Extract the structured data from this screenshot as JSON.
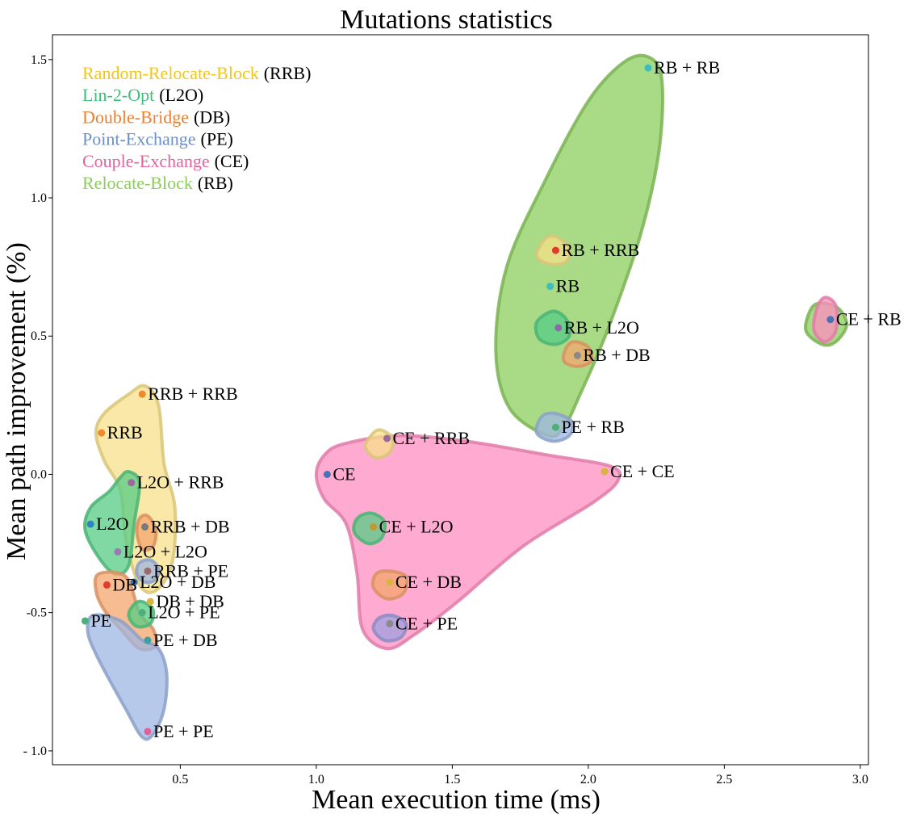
{
  "chart_data": {
    "type": "scatter",
    "title": "Mutations statistics",
    "xlabel": "Mean execution time (ms)",
    "ylabel": "Mean path improvement (%)",
    "xlim": [
      0.03,
      3.03
    ],
    "ylim": [
      -1.05,
      1.59
    ],
    "xticks": [
      {
        "value": 0.5,
        "label": "0.5"
      },
      {
        "value": 1.0,
        "label": "1.0"
      },
      {
        "value": 1.5,
        "label": "1.5"
      },
      {
        "value": 2.0,
        "label": "2.0"
      },
      {
        "value": 2.5,
        "label": "2.5"
      },
      {
        "value": 3.0,
        "label": "3.0"
      }
    ],
    "yticks": [
      {
        "value": 1.5,
        "label": "1.5"
      },
      {
        "value": 1.0,
        "label": "1.0"
      },
      {
        "value": 0.5,
        "label": "0.5"
      },
      {
        "value": 0.0,
        "label": "0.0"
      },
      {
        "value": -0.5,
        "label": "-0.5"
      },
      {
        "value": -1.0,
        "label": "- 1.0"
      }
    ],
    "grid": false,
    "legend_position": "top-left",
    "legend": [
      {
        "name": "Random-Relocate-Block",
        "abbr": "(RRB)",
        "color": "#f2c619"
      },
      {
        "name": "Lin-2-Opt",
        "abbr": "(L2O)",
        "color": "#3cc078"
      },
      {
        "name": "Double-Bridge",
        "abbr": "(DB)",
        "color": "#ee7f2d"
      },
      {
        "name": "Point-Exchange",
        "abbr": "(PE)",
        "color": "#6a8fcb"
      },
      {
        "name": "Couple-Exchange",
        "abbr": "(CE)",
        "color": "#e8629a"
      },
      {
        "name": "Relocate-Block",
        "abbr": "(RB)",
        "color": "#8ccd5e"
      }
    ],
    "points": [
      {
        "label": "RB + RB",
        "x": 2.22,
        "y": 1.47,
        "color": "#3dbdbd"
      },
      {
        "label": "RB + RRB",
        "x": 1.88,
        "y": 0.81,
        "color": "#e03c2e"
      },
      {
        "label": "RB",
        "x": 1.86,
        "y": 0.68,
        "color": "#3dbdbd"
      },
      {
        "label": "CE + RB",
        "x": 2.89,
        "y": 0.56,
        "color": "#4a73b5"
      },
      {
        "label": "RB + L2O",
        "x": 1.89,
        "y": 0.53,
        "color": "#8a6aa8"
      },
      {
        "label": "RB + DB",
        "x": 1.96,
        "y": 0.43,
        "color": "#8a8a8a"
      },
      {
        "label": "RRB + RRB",
        "x": 0.36,
        "y": 0.29,
        "color": "#ee8a2d"
      },
      {
        "label": "PE + RB",
        "x": 1.88,
        "y": 0.17,
        "color": "#4bb07a"
      },
      {
        "label": "RRB",
        "x": 0.21,
        "y": 0.15,
        "color": "#ee8a2d"
      },
      {
        "label": "CE + RRB",
        "x": 1.26,
        "y": 0.13,
        "color": "#9a6a9a"
      },
      {
        "label": "CE",
        "x": 1.04,
        "y": 0.0,
        "color": "#4a73b5"
      },
      {
        "label": "CE + CE",
        "x": 2.06,
        "y": 0.01,
        "color": "#d8b440"
      },
      {
        "label": "L2O + RRB",
        "x": 0.32,
        "y": -0.03,
        "color": "#9a6a9a"
      },
      {
        "label": "L2O",
        "x": 0.17,
        "y": -0.18,
        "color": "#2e86c1"
      },
      {
        "label": "RRB + DB",
        "x": 0.37,
        "y": -0.19,
        "color": "#7a7a7a"
      },
      {
        "label": "CE + L2O",
        "x": 1.21,
        "y": -0.19,
        "color": "#c09a30"
      },
      {
        "label": "L2O + L2O",
        "x": 0.27,
        "y": -0.28,
        "color": "#9a7ab0"
      },
      {
        "label": "RRB + PE",
        "x": 0.38,
        "y": -0.35,
        "color": "#9a6a6a"
      },
      {
        "label": "L2O + DB",
        "x": 0.33,
        "y": -0.39,
        "color": "#3a6fb0"
      },
      {
        "label": "DB",
        "x": 0.23,
        "y": -0.4,
        "color": "#e03c2e"
      },
      {
        "label": "CE + DB",
        "x": 1.27,
        "y": -0.39,
        "color": "#d8b440"
      },
      {
        "label": "DB + DB",
        "x": 0.39,
        "y": -0.46,
        "color": "#d8b440"
      },
      {
        "label": "L2O + PE",
        "x": 0.36,
        "y": -0.5,
        "color": "#4bb07a"
      },
      {
        "label": "PE",
        "x": 0.15,
        "y": -0.53,
        "color": "#4bb07a"
      },
      {
        "label": "CE + PE",
        "x": 1.27,
        "y": -0.54,
        "color": "#8a8a8a"
      },
      {
        "label": "PE + DB",
        "x": 0.38,
        "y": -0.6,
        "color": "#3aa0a0"
      },
      {
        "label": "PE + PE",
        "x": 0.38,
        "y": -0.93,
        "color": "#e0609a"
      }
    ],
    "regions": [
      {
        "color": "#8ccd5e",
        "points": [
          [
            1.85,
            0.14
          ],
          [
            1.71,
            0.24
          ],
          [
            1.66,
            0.45
          ],
          [
            1.7,
            0.75
          ],
          [
            1.84,
            1.06
          ],
          [
            2.0,
            1.35
          ],
          [
            2.13,
            1.49
          ],
          [
            2.22,
            1.51
          ],
          [
            2.27,
            1.43
          ],
          [
            2.26,
            1.17
          ],
          [
            2.19,
            0.86
          ],
          [
            2.07,
            0.52
          ],
          [
            1.97,
            0.29
          ],
          [
            1.91,
            0.17
          ]
        ]
      },
      {
        "color": "#f7e08a",
        "points": [
          [
            0.31,
            0.29
          ],
          [
            0.37,
            0.32
          ],
          [
            0.42,
            0.25
          ],
          [
            0.44,
            0.04
          ],
          [
            0.48,
            -0.12
          ],
          [
            0.47,
            -0.32
          ],
          [
            0.41,
            -0.42
          ],
          [
            0.35,
            -0.4
          ],
          [
            0.3,
            -0.24
          ],
          [
            0.28,
            -0.06
          ],
          [
            0.22,
            0.05
          ],
          [
            0.19,
            0.15
          ],
          [
            0.22,
            0.22
          ]
        ]
      },
      {
        "color": "#ff8ec0",
        "points": [
          [
            1.1,
            0.11
          ],
          [
            1.3,
            0.14
          ],
          [
            1.55,
            0.12
          ],
          [
            1.85,
            0.07
          ],
          [
            2.08,
            0.03
          ],
          [
            2.11,
            -0.02
          ],
          [
            2.02,
            -0.1
          ],
          [
            1.76,
            -0.26
          ],
          [
            1.52,
            -0.46
          ],
          [
            1.36,
            -0.58
          ],
          [
            1.26,
            -0.63
          ],
          [
            1.17,
            -0.56
          ],
          [
            1.15,
            -0.36
          ],
          [
            1.11,
            -0.18
          ],
          [
            1.03,
            -0.09
          ],
          [
            1.0,
            0.0
          ],
          [
            1.03,
            0.07
          ]
        ]
      },
      {
        "color": "#56cc84",
        "points": [
          [
            0.31,
            0.01
          ],
          [
            0.35,
            -0.03
          ],
          [
            0.33,
            -0.18
          ],
          [
            0.31,
            -0.33
          ],
          [
            0.26,
            -0.36
          ],
          [
            0.2,
            -0.3
          ],
          [
            0.15,
            -0.2
          ],
          [
            0.17,
            -0.12
          ],
          [
            0.24,
            -0.06
          ],
          [
            0.28,
            -0.01
          ]
        ]
      },
      {
        "color": "#f5a66e",
        "points": [
          [
            0.2,
            -0.36
          ],
          [
            0.3,
            -0.37
          ],
          [
            0.35,
            -0.5
          ],
          [
            0.4,
            -0.56
          ],
          [
            0.41,
            -0.62
          ],
          [
            0.35,
            -0.63
          ],
          [
            0.28,
            -0.56
          ],
          [
            0.22,
            -0.49
          ],
          [
            0.19,
            -0.42
          ]
        ]
      },
      {
        "color": "#9fb7e3",
        "points": [
          [
            0.18,
            -0.51
          ],
          [
            0.28,
            -0.53
          ],
          [
            0.36,
            -0.6
          ],
          [
            0.42,
            -0.63
          ],
          [
            0.45,
            -0.72
          ],
          [
            0.44,
            -0.85
          ],
          [
            0.4,
            -0.94
          ],
          [
            0.36,
            -0.95
          ],
          [
            0.3,
            -0.85
          ],
          [
            0.2,
            -0.67
          ],
          [
            0.16,
            -0.57
          ]
        ]
      },
      {
        "color": "#56cc84",
        "points": [
          [
            1.87,
            0.59
          ],
          [
            1.92,
            0.56
          ],
          [
            1.93,
            0.5
          ],
          [
            1.88,
            0.47
          ],
          [
            1.82,
            0.49
          ],
          [
            1.81,
            0.55
          ]
        ]
      },
      {
        "color": "#f5a66e",
        "points": [
          [
            1.95,
            0.48
          ],
          [
            2.0,
            0.46
          ],
          [
            2.01,
            0.41
          ],
          [
            1.96,
            0.39
          ],
          [
            1.91,
            0.41
          ],
          [
            1.92,
            0.46
          ]
        ]
      },
      {
        "color": "#f7e08a",
        "points": [
          [
            1.88,
            0.86
          ],
          [
            1.93,
            0.82
          ],
          [
            1.92,
            0.77
          ],
          [
            1.86,
            0.76
          ],
          [
            1.81,
            0.79
          ],
          [
            1.84,
            0.85
          ]
        ]
      },
      {
        "color": "#9fb7e3",
        "points": [
          [
            1.88,
            0.22
          ],
          [
            1.94,
            0.19
          ],
          [
            1.93,
            0.14
          ],
          [
            1.87,
            0.12
          ],
          [
            1.81,
            0.15
          ],
          [
            1.83,
            0.21
          ]
        ]
      },
      {
        "color": "#8ccd5e",
        "points": [
          [
            2.86,
            0.62
          ],
          [
            2.92,
            0.6
          ],
          [
            2.95,
            0.54
          ],
          [
            2.91,
            0.48
          ],
          [
            2.86,
            0.47
          ],
          [
            2.8,
            0.52
          ],
          [
            2.82,
            0.6
          ]
        ]
      },
      {
        "color": "#ff8ec0",
        "points": [
          [
            2.87,
            0.64
          ],
          [
            2.91,
            0.61
          ],
          [
            2.91,
            0.52
          ],
          [
            2.87,
            0.48
          ],
          [
            2.83,
            0.52
          ],
          [
            2.84,
            0.6
          ]
        ]
      },
      {
        "color": "#f7e08a",
        "points": [
          [
            1.24,
            0.16
          ],
          [
            1.28,
            0.13
          ],
          [
            1.27,
            0.08
          ],
          [
            1.22,
            0.06
          ],
          [
            1.18,
            0.1
          ],
          [
            1.21,
            0.15
          ]
        ]
      },
      {
        "color": "#56cc84",
        "points": [
          [
            1.2,
            -0.14
          ],
          [
            1.25,
            -0.17
          ],
          [
            1.24,
            -0.23
          ],
          [
            1.19,
            -0.25
          ],
          [
            1.14,
            -0.21
          ],
          [
            1.15,
            -0.16
          ]
        ]
      },
      {
        "color": "#f5a66e",
        "points": [
          [
            1.27,
            -0.35
          ],
          [
            1.33,
            -0.37
          ],
          [
            1.32,
            -0.43
          ],
          [
            1.26,
            -0.45
          ],
          [
            1.21,
            -0.41
          ],
          [
            1.22,
            -0.36
          ]
        ]
      },
      {
        "color": "#9f9fe0",
        "points": [
          [
            1.28,
            -0.51
          ],
          [
            1.33,
            -0.54
          ],
          [
            1.31,
            -0.59
          ],
          [
            1.25,
            -0.6
          ],
          [
            1.21,
            -0.56
          ],
          [
            1.23,
            -0.52
          ]
        ]
      },
      {
        "color": "#f5a66e",
        "points": [
          [
            0.38,
            -0.15
          ],
          [
            0.41,
            -0.2
          ],
          [
            0.4,
            -0.26
          ],
          [
            0.36,
            -0.27
          ],
          [
            0.34,
            -0.21
          ],
          [
            0.35,
            -0.16
          ]
        ]
      },
      {
        "color": "#9fb7e3",
        "points": [
          [
            0.39,
            -0.31
          ],
          [
            0.42,
            -0.34
          ],
          [
            0.41,
            -0.38
          ],
          [
            0.37,
            -0.39
          ],
          [
            0.34,
            -0.36
          ],
          [
            0.35,
            -0.32
          ]
        ]
      },
      {
        "color": "#56cc84",
        "points": [
          [
            0.36,
            -0.46
          ],
          [
            0.4,
            -0.49
          ],
          [
            0.39,
            -0.54
          ],
          [
            0.34,
            -0.55
          ],
          [
            0.31,
            -0.51
          ],
          [
            0.33,
            -0.47
          ]
        ]
      }
    ]
  }
}
